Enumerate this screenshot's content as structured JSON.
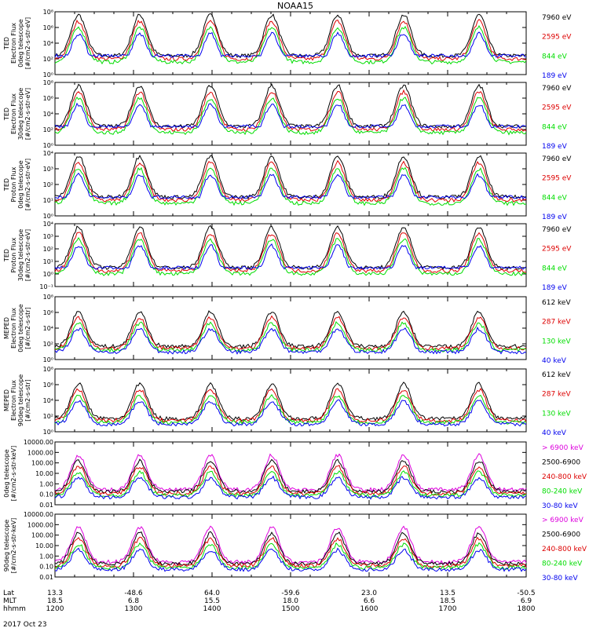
{
  "title": "NOAA15",
  "date_label": "2017 Oct 23",
  "footer": {
    "row_labels": [
      "Lat",
      "MLT",
      "hhmm"
    ],
    "lat": [
      "13.3",
      "-48.6",
      "64.0",
      "-59.6",
      "23.0",
      "13.5",
      "-50.5"
    ],
    "mlt": [
      "18.5",
      "6.8",
      "15.5",
      "18.0",
      "6.6",
      "18.5",
      "6.9"
    ],
    "hhmm": [
      "1200",
      "1300",
      "1400",
      "1500",
      "1600",
      "1700",
      "1800"
    ]
  },
  "colors": {
    "black": "#000000",
    "red": "#dd0000",
    "green": "#00dd00",
    "blue": "#0000ee",
    "magenta": "#dd00dd"
  },
  "chart_data": [
    {
      "type": "line",
      "ylabel": [
        "TED",
        "Electron Flux",
        "0deg telescope",
        "[#/cm2-s-str-eV]"
      ],
      "yticks": [
        "10⁰",
        "10²",
        "10⁴",
        "10⁶",
        "10⁸"
      ],
      "series": [
        {
          "name": "7960 eV",
          "color": "#000000"
        },
        {
          "name": "2595 eV",
          "color": "#dd0000"
        },
        {
          "name": "844 eV",
          "color": "#00dd00"
        },
        {
          "name": "189 eV",
          "color": "#0000ee"
        }
      ]
    },
    {
      "type": "line",
      "ylabel": [
        "TED",
        "Electron Flux",
        "30deg telescope",
        "[#/cm2-s-str-eV]"
      ],
      "yticks": [
        "10⁰",
        "10²",
        "10⁴",
        "10⁶",
        "10⁸"
      ],
      "series": [
        {
          "name": "7960 eV",
          "color": "#000000"
        },
        {
          "name": "2595 eV",
          "color": "#dd0000"
        },
        {
          "name": "844 eV",
          "color": "#00dd00"
        },
        {
          "name": "189 eV",
          "color": "#0000ee"
        }
      ]
    },
    {
      "type": "line",
      "ylabel": [
        "TED",
        "Proton Flux",
        "0deg telescope",
        "[#/cm2-s-str-eV]"
      ],
      "yticks": [
        "10⁰",
        "10¹",
        "10²",
        "10³",
        "10⁴"
      ],
      "series": [
        {
          "name": "7960 eV",
          "color": "#000000"
        },
        {
          "name": "2595 eV",
          "color": "#dd0000"
        },
        {
          "name": "844 eV",
          "color": "#00dd00"
        },
        {
          "name": "189 eV",
          "color": "#0000ee"
        }
      ]
    },
    {
      "type": "line",
      "ylabel": [
        "TED",
        "Proton Flux",
        "30deg telescope",
        "[#/cm2-s-str-eV]"
      ],
      "yticks": [
        "10⁻¹",
        "10⁰",
        "10¹",
        "10²",
        "10³",
        "10⁴"
      ],
      "series": [
        {
          "name": "7960 eV",
          "color": "#000000"
        },
        {
          "name": "2595 eV",
          "color": "#dd0000"
        },
        {
          "name": "844 eV",
          "color": "#00dd00"
        },
        {
          "name": "189 eV",
          "color": "#0000ee"
        }
      ]
    },
    {
      "type": "line",
      "ylabel": [
        "MEPED",
        "Electron Flux",
        "0deg telescope",
        "[#/cm2-s-str]"
      ],
      "yticks": [
        "10⁰",
        "10²",
        "10⁴",
        "10⁶",
        "10⁸"
      ],
      "series": [
        {
          "name": "612 keV",
          "color": "#000000"
        },
        {
          "name": "287 keV",
          "color": "#dd0000"
        },
        {
          "name": "130 keV",
          "color": "#00dd00"
        },
        {
          "name": "40 keV",
          "color": "#0000ee"
        }
      ]
    },
    {
      "type": "line",
      "ylabel": [
        "MEPED",
        "Electron Flux",
        "90deg telescope",
        "[#/cm2-s-str]"
      ],
      "yticks": [
        "10⁰",
        "10²",
        "10⁴",
        "10⁶",
        "10⁸"
      ],
      "series": [
        {
          "name": "612 keV",
          "color": "#000000"
        },
        {
          "name": "287 keV",
          "color": "#dd0000"
        },
        {
          "name": "130 keV",
          "color": "#00dd00"
        },
        {
          "name": "40 keV",
          "color": "#0000ee"
        }
      ]
    },
    {
      "type": "line",
      "ylabel": [
        "0deg telescope",
        "[#/cm2-s-str-keV]"
      ],
      "yticks": [
        "0.01",
        "0.10",
        "1.00",
        "10.00",
        "100.00",
        "1000.00",
        "10000.00"
      ],
      "series": [
        {
          "name": "> 6900 keV",
          "color": "#dd00dd"
        },
        {
          "name": "2500-6900",
          "color": "#000000"
        },
        {
          "name": "240-800 keV",
          "color": "#dd0000"
        },
        {
          "name": "80-240 keV",
          "color": "#00dd00"
        },
        {
          "name": "30-80 keV",
          "color": "#0000ee"
        }
      ]
    },
    {
      "type": "line",
      "ylabel": [
        "90deg telescope",
        "[#/cm2-s-str-keV]"
      ],
      "yticks": [
        "0.01",
        "0.10",
        "1.00",
        "10.00",
        "100.00",
        "1000.00",
        "10000.00"
      ],
      "series": [
        {
          "name": "> 6900 keV",
          "color": "#dd00dd"
        },
        {
          "name": "2500-6900",
          "color": "#000000"
        },
        {
          "name": "240-800 keV",
          "color": "#dd0000"
        },
        {
          "name": "80-240 keV",
          "color": "#00dd00"
        },
        {
          "name": "30-80 keV",
          "color": "#0000ee"
        }
      ]
    }
  ]
}
